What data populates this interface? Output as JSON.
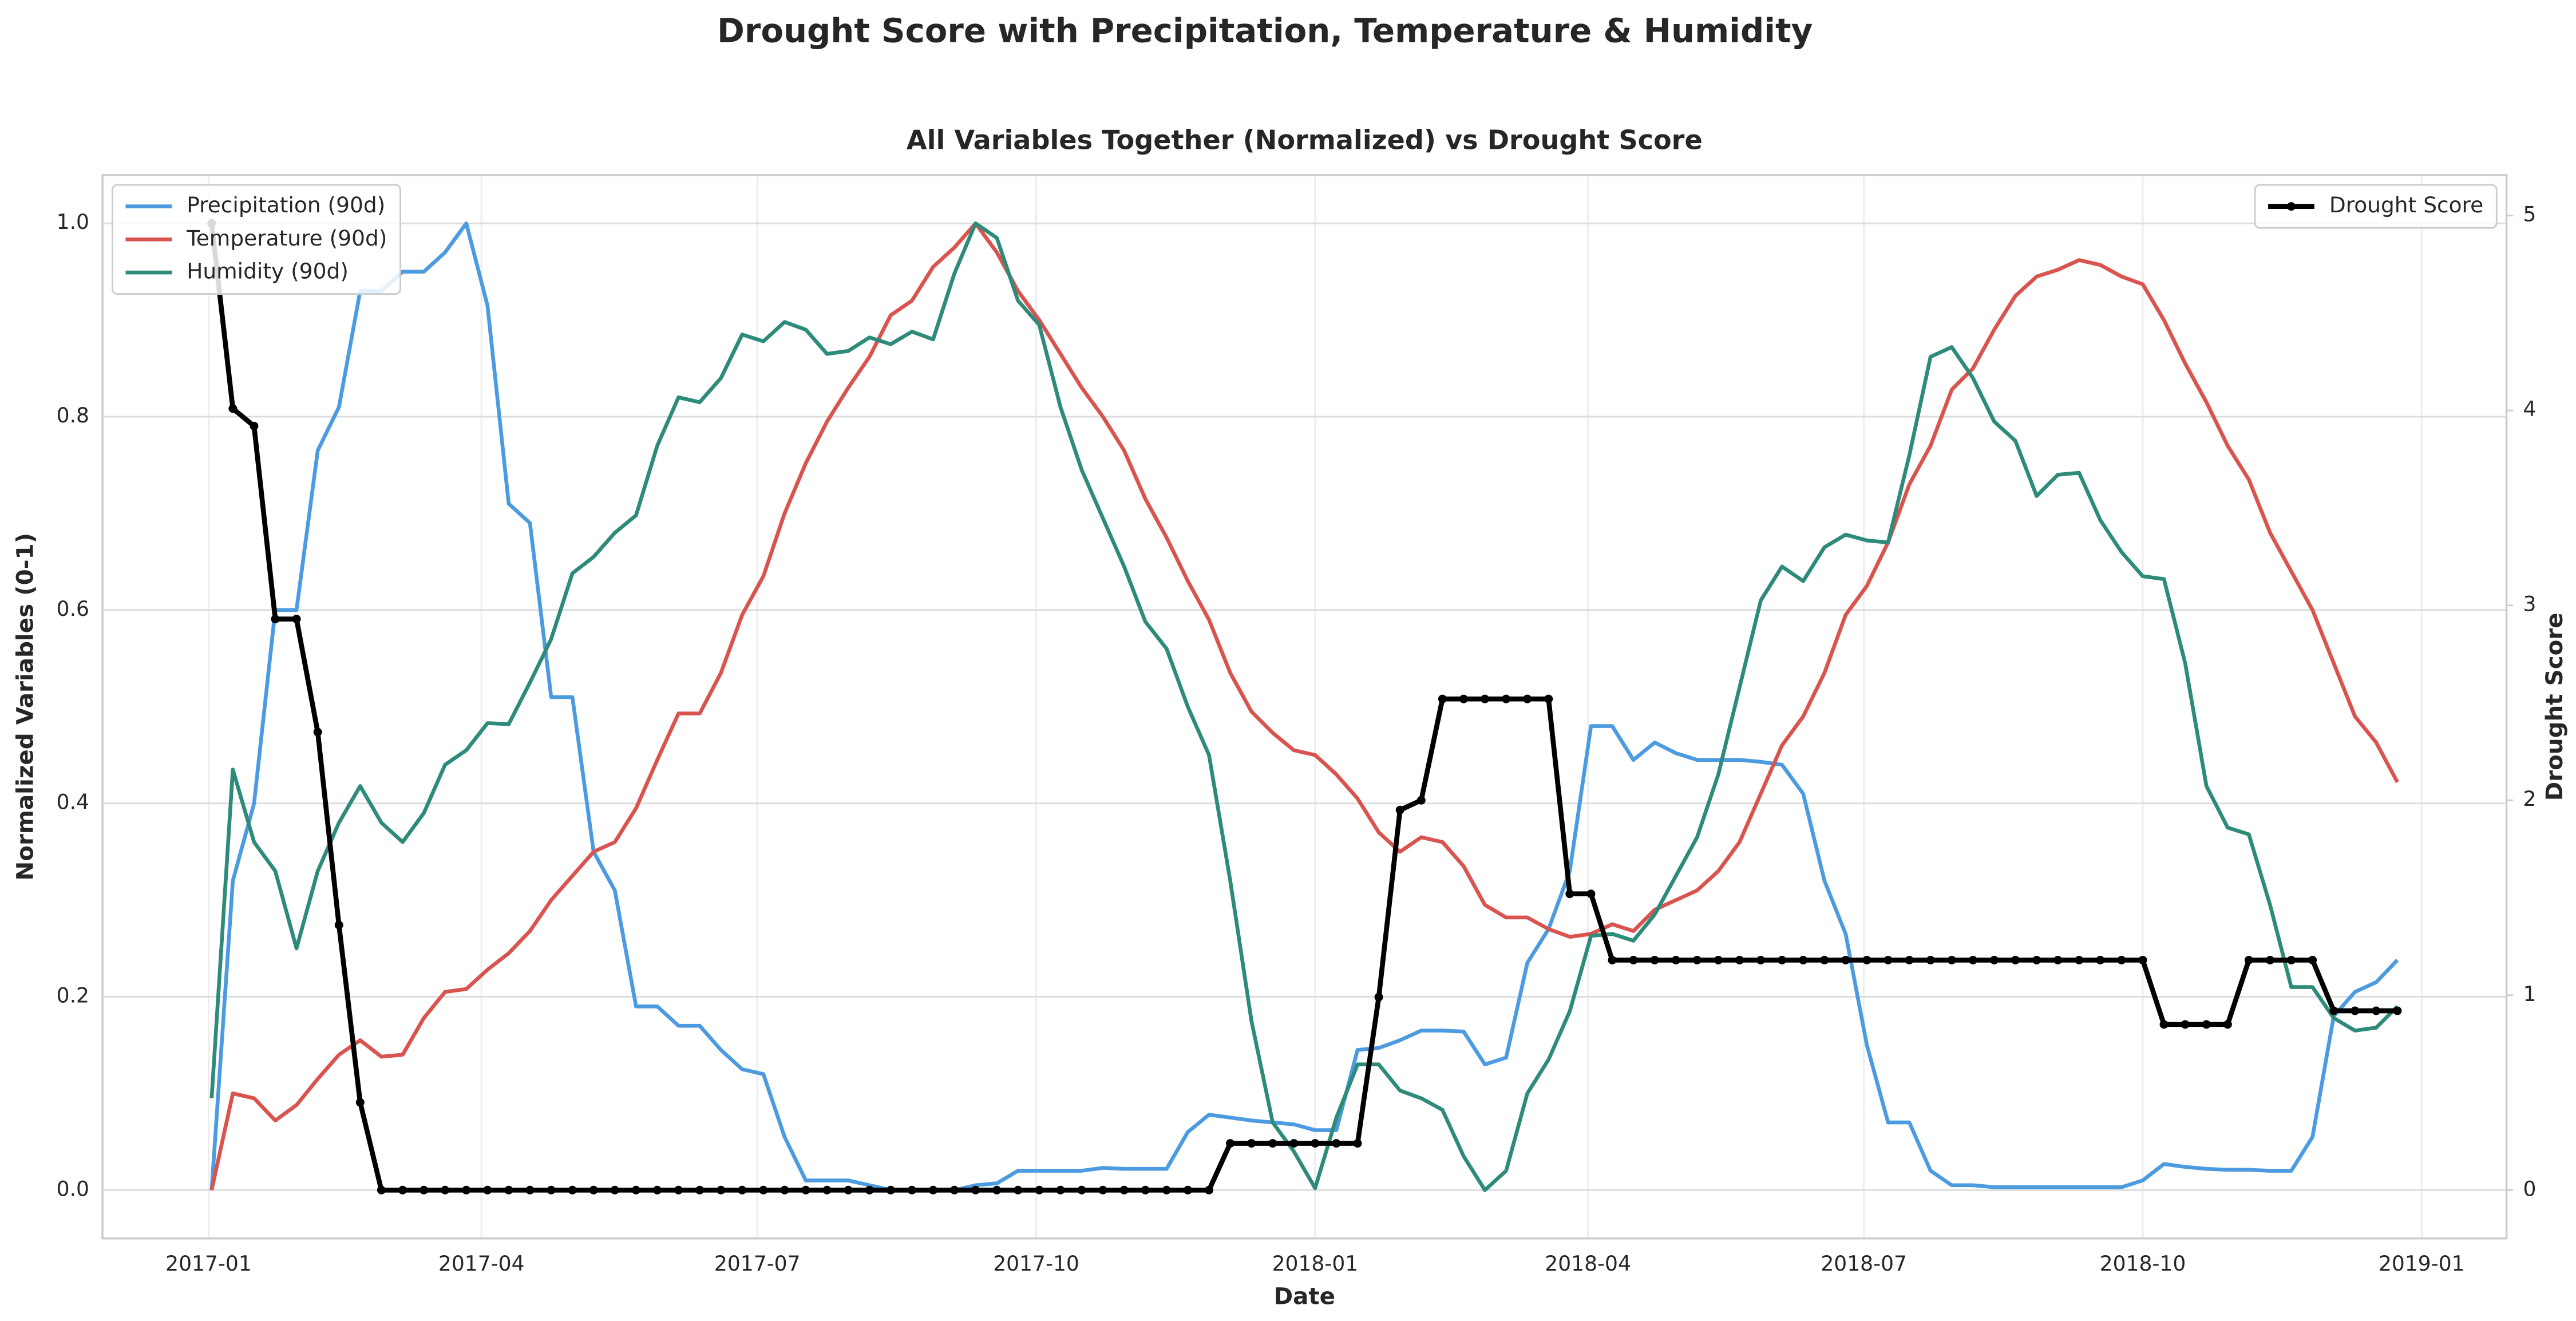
{
  "chart_data": {
    "type": "line",
    "title": "Drought Score with Precipitation, Temperature & Humidity",
    "subtitle": "All Variables Together (Normalized) vs Drought Score",
    "xlabel": "Date",
    "ylabel": "Normalized Variables (0-1)",
    "y2label": "Drought Score",
    "grid": true,
    "legend": "upper left",
    "y2legend": "upper right",
    "x": [
      "2017-01-02",
      "2017-01-09",
      "2017-01-16",
      "2017-01-23",
      "2017-01-30",
      "2017-02-06",
      "2017-02-13",
      "2017-02-20",
      "2017-02-27",
      "2017-03-06",
      "2017-03-13",
      "2017-03-20",
      "2017-03-27",
      "2017-04-03",
      "2017-04-10",
      "2017-04-17",
      "2017-04-24",
      "2017-05-01",
      "2017-05-08",
      "2017-05-15",
      "2017-05-22",
      "2017-05-29",
      "2017-06-05",
      "2017-06-12",
      "2017-06-19",
      "2017-06-26",
      "2017-07-03",
      "2017-07-10",
      "2017-07-17",
      "2017-07-24",
      "2017-07-31",
      "2017-08-07",
      "2017-08-14",
      "2017-08-21",
      "2017-08-28",
      "2017-09-04",
      "2017-09-11",
      "2017-09-18",
      "2017-09-25",
      "2017-10-02",
      "2017-10-09",
      "2017-10-16",
      "2017-10-23",
      "2017-10-30",
      "2017-11-06",
      "2017-11-13",
      "2017-11-20",
      "2017-11-27",
      "2017-12-04",
      "2017-12-11",
      "2017-12-18",
      "2017-12-25",
      "2018-01-01",
      "2018-01-08",
      "2018-01-15",
      "2018-01-22",
      "2018-01-29",
      "2018-02-05",
      "2018-02-12",
      "2018-02-19",
      "2018-02-26",
      "2018-03-05",
      "2018-03-12",
      "2018-03-19",
      "2018-03-26",
      "2018-04-02",
      "2018-04-09",
      "2018-04-16",
      "2018-04-23",
      "2018-04-30",
      "2018-05-07",
      "2018-05-14",
      "2018-05-21",
      "2018-05-28",
      "2018-06-04",
      "2018-06-11",
      "2018-06-18",
      "2018-06-25",
      "2018-07-02",
      "2018-07-09",
      "2018-07-16",
      "2018-07-23",
      "2018-07-30",
      "2018-08-06",
      "2018-08-13",
      "2018-08-20",
      "2018-08-27",
      "2018-09-03",
      "2018-09-10",
      "2018-09-17",
      "2018-09-24",
      "2018-10-01",
      "2018-10-08",
      "2018-10-15",
      "2018-10-22",
      "2018-10-29",
      "2018-11-05",
      "2018-11-12",
      "2018-11-19",
      "2018-11-26",
      "2018-12-03",
      "2018-12-10",
      "2018-12-17",
      "2018-12-24"
    ],
    "xlim": [
      "2016-11-27",
      "2019-01-29"
    ],
    "xticks": [
      {
        "value": "2017-01-01",
        "label": "2017-01"
      },
      {
        "value": "2017-04-01",
        "label": "2017-04"
      },
      {
        "value": "2017-07-01",
        "label": "2017-07"
      },
      {
        "value": "2017-10-01",
        "label": "2017-10"
      },
      {
        "value": "2018-01-01",
        "label": "2018-01"
      },
      {
        "value": "2018-04-01",
        "label": "2018-04"
      },
      {
        "value": "2018-07-01",
        "label": "2018-07"
      },
      {
        "value": "2018-10-01",
        "label": "2018-10"
      },
      {
        "value": "2019-01-01",
        "label": "2019-01"
      }
    ],
    "ylim": [
      -0.05,
      1.05
    ],
    "yticks": [
      {
        "value": 0,
        "label": "0.0"
      },
      0.2,
      0.4,
      0.6,
      0.8,
      {
        "value": 1,
        "label": "1.0"
      }
    ],
    "y2lim": [
      -0.248,
      5.208
    ],
    "y2ticks": [
      0,
      1,
      2,
      3,
      4,
      5
    ],
    "series": [
      {
        "name": "Precipitation (90d)",
        "color": "#4c9be0",
        "values": [
          0,
          0.32,
          0.4,
          0.6,
          0.6,
          0.765,
          0.81,
          0.93,
          0.93,
          0.95,
          0.95,
          0.97,
          1.0,
          0.915,
          0.71,
          0.69,
          0.51,
          0.51,
          0.35,
          0.31,
          0.19,
          0.19,
          0.17,
          0.17,
          0.145,
          0.125,
          0.12,
          0.055,
          0.01,
          0.01,
          0.01,
          0.005,
          0,
          0,
          0,
          0,
          0.005,
          0.007,
          0.02,
          0.02,
          0.02,
          0.02,
          0.023,
          0.022,
          0.022,
          0.022,
          0.06,
          0.078,
          0.075,
          0.072,
          0.07,
          0.068,
          0.062,
          0.062,
          0.145,
          0.147,
          0.155,
          0.165,
          0.165,
          0.164,
          0.13,
          0.137,
          0.235,
          0.27,
          0.33,
          0.48,
          0.48,
          0.445,
          0.463,
          0.452,
          0.445,
          0.445,
          0.445,
          0.443,
          0.44,
          0.41,
          0.32,
          0.265,
          0.15,
          0.07,
          0.07,
          0.02,
          0.005,
          0.005,
          0.003,
          0.003,
          0.003,
          0.003,
          0.003,
          0.003,
          0.003,
          0.01,
          0.027,
          0.024,
          0.022,
          0.021,
          0.021,
          0.02,
          0.02,
          0.055,
          0.18,
          0.205,
          0.215,
          0.238
        ]
      },
      {
        "name": "Temperature (90d)",
        "color": "#d9534f",
        "values": [
          0,
          0.1,
          0.095,
          0.072,
          0.088,
          0.115,
          0.14,
          0.155,
          0.138,
          0.14,
          0.178,
          0.205,
          0.208,
          0.228,
          0.245,
          0.268,
          0.3,
          0.325,
          0.35,
          0.36,
          0.395,
          0.445,
          0.493,
          0.493,
          0.535,
          0.595,
          0.635,
          0.7,
          0.752,
          0.795,
          0.83,
          0.862,
          0.905,
          0.92,
          0.955,
          0.975,
          1.0,
          0.97,
          0.93,
          0.9,
          0.865,
          0.83,
          0.8,
          0.765,
          0.715,
          0.675,
          0.63,
          0.59,
          0.535,
          0.495,
          0.473,
          0.455,
          0.45,
          0.43,
          0.405,
          0.37,
          0.35,
          0.365,
          0.36,
          0.335,
          0.295,
          0.282,
          0.282,
          0.27,
          0.262,
          0.265,
          0.275,
          0.268,
          0.29,
          0.3,
          0.31,
          0.33,
          0.36,
          0.41,
          0.46,
          0.49,
          0.535,
          0.595,
          0.625,
          0.67,
          0.73,
          0.77,
          0.828,
          0.85,
          0.89,
          0.925,
          0.945,
          0.952,
          0.962,
          0.957,
          0.945,
          0.937,
          0.9,
          0.855,
          0.815,
          0.77,
          0.735,
          0.68,
          0.64,
          0.6,
          0.545,
          0.49,
          0.463,
          0.422
        ]
      },
      {
        "name": "Humidity (90d)",
        "color": "#2e8b7a",
        "values": [
          0.095,
          0.435,
          0.36,
          0.33,
          0.25,
          0.33,
          0.38,
          0.418,
          0.38,
          0.36,
          0.39,
          0.44,
          0.455,
          0.483,
          0.482,
          0.525,
          0.57,
          0.638,
          0.655,
          0.68,
          0.698,
          0.77,
          0.82,
          0.815,
          0.84,
          0.885,
          0.878,
          0.898,
          0.89,
          0.865,
          0.868,
          0.882,
          0.875,
          0.888,
          0.88,
          0.948,
          1.0,
          0.985,
          0.92,
          0.895,
          0.81,
          0.745,
          0.695,
          0.645,
          0.588,
          0.56,
          0.5,
          0.45,
          0.32,
          0.175,
          0.07,
          0.04,
          0.002,
          0.075,
          0.13,
          0.13,
          0.103,
          0.095,
          0.083,
          0.035,
          0,
          0.02,
          0.1,
          0.135,
          0.185,
          0.263,
          0.265,
          0.258,
          0.285,
          0.325,
          0.365,
          0.43,
          0.52,
          0.61,
          0.645,
          0.63,
          0.665,
          0.678,
          0.672,
          0.67,
          0.76,
          0.862,
          0.872,
          0.84,
          0.795,
          0.775,
          0.718,
          0.74,
          0.742,
          0.693,
          0.66,
          0.635,
          0.632,
          0.545,
          0.418,
          0.375,
          0.368,
          0.295,
          0.21,
          0.21,
          0.178,
          0.165,
          0.168,
          0.19
        ]
      },
      {
        "name": "Drought Score",
        "color": "#000000",
        "axis": "y2",
        "marker": true,
        "values": [
          4.96,
          4.01,
          3.92,
          2.93,
          2.93,
          2.35,
          1.36,
          0.45,
          0,
          0,
          0,
          0,
          0,
          0,
          0,
          0,
          0,
          0,
          0,
          0,
          0,
          0,
          0,
          0,
          0,
          0,
          0,
          0,
          0,
          0,
          0,
          0,
          0,
          0,
          0,
          0,
          0,
          0,
          0,
          0,
          0,
          0,
          0,
          0,
          0,
          0,
          0,
          0,
          0.24,
          0.24,
          0.24,
          0.24,
          0.24,
          0.24,
          0.24,
          0.99,
          1.95,
          2.0,
          2.52,
          2.52,
          2.52,
          2.52,
          2.52,
          2.52,
          1.52,
          1.52,
          1.18,
          1.18,
          1.18,
          1.18,
          1.18,
          1.18,
          1.18,
          1.18,
          1.18,
          1.18,
          1.18,
          1.18,
          1.18,
          1.18,
          1.18,
          1.18,
          1.18,
          1.18,
          1.18,
          1.18,
          1.18,
          1.18,
          1.18,
          1.18,
          1.18,
          1.18,
          0.85,
          0.85,
          0.85,
          0.85,
          1.18,
          1.18,
          1.18,
          1.18,
          0.92,
          0.92,
          0.92,
          0.92
        ]
      }
    ]
  }
}
